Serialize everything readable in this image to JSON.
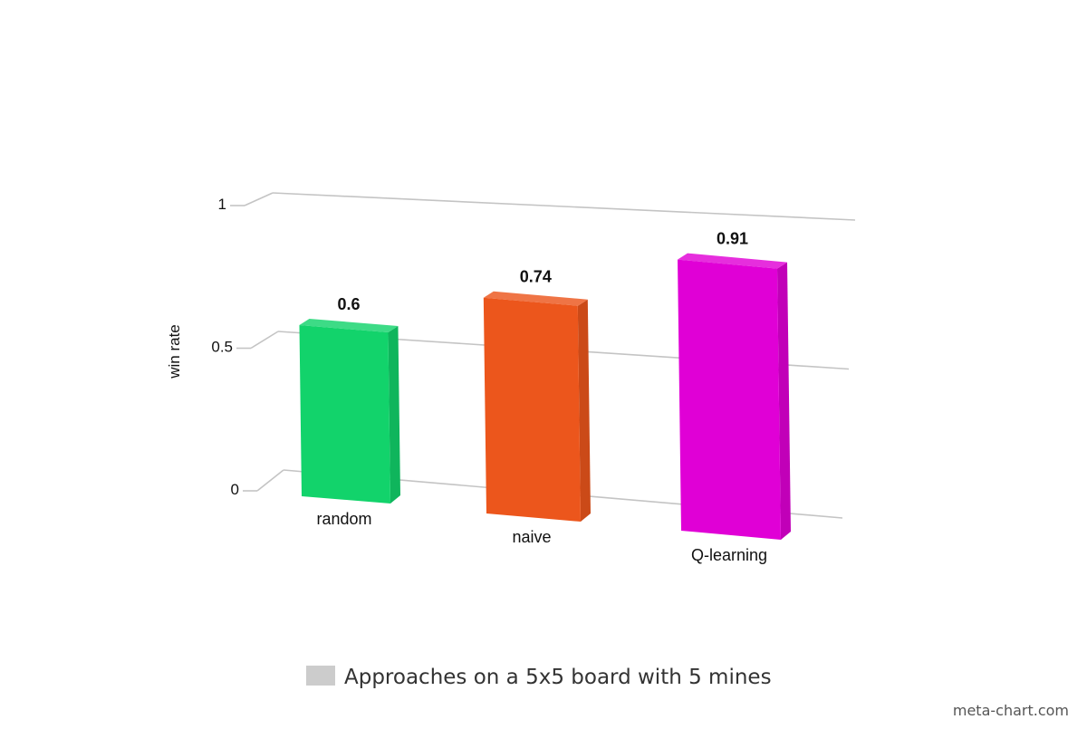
{
  "chart_data": {
    "type": "bar",
    "categories": [
      "random",
      "naive",
      "Q-learning"
    ],
    "series": [
      {
        "name": "Approaches on a 5x5 board with 5 mines",
        "values": [
          0.6,
          0.74,
          0.91
        ],
        "colors": [
          "#12d36b",
          "#ec561c",
          "#e000d6"
        ]
      }
    ],
    "value_labels": [
      "0.6",
      "0.74",
      "0.91"
    ],
    "ylabel": "win rate",
    "xlabel": "",
    "ylim": [
      0,
      1
    ],
    "yticks": [
      0,
      0.5,
      1
    ],
    "ytick_labels": [
      "0",
      "0.5",
      "1"
    ],
    "grid": true,
    "legend_position": "bottom-center",
    "legend_swatch_color": "#cccccc",
    "style": "3d-perspective",
    "credit": "meta-chart.com"
  }
}
